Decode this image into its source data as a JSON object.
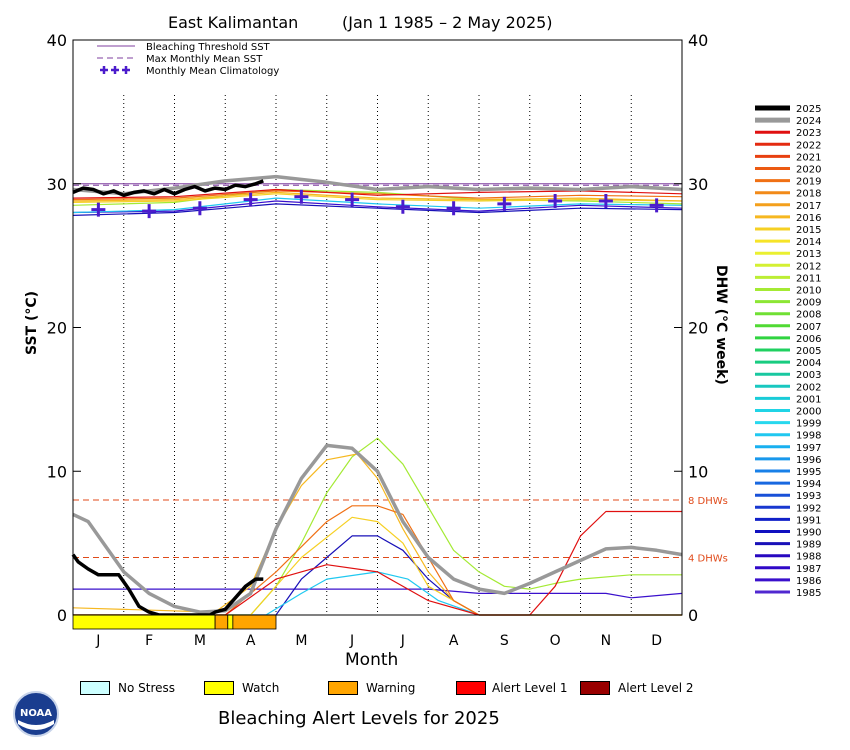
{
  "chart_data": {
    "type": "line",
    "title": "East Kalimantan",
    "subtitle": "(Jan 1 1985 – 2 May 2025)",
    "xlabel": "Month",
    "ylabel_left": "SST (°C)",
    "ylabel_right": "DHW (°C week)",
    "ylim": [
      0,
      40
    ],
    "yticks": [
      0,
      10,
      20,
      30,
      40
    ],
    "grid": "vertical dotted month lines",
    "months": [
      "J",
      "F",
      "M",
      "A",
      "M",
      "J",
      "J",
      "A",
      "S",
      "O",
      "N",
      "D"
    ],
    "bleaching_threshold_sst": 30.0,
    "max_monthly_mean_sst": 29.9,
    "dhw_reference_lines": [
      {
        "value": 8,
        "label": "8 DHWs"
      },
      {
        "value": 4,
        "label": "4 DHWs"
      }
    ],
    "legend_top": [
      {
        "label": "Bleaching Threshold SST",
        "style": "solid",
        "color": "#7f3f9f"
      },
      {
        "label": "Max Monthly Mean SST",
        "style": "dashed",
        "color": "#7f3f9f"
      },
      {
        "label": "Monthly Mean Climatology",
        "style": "plus",
        "color": "#4b1ccc"
      }
    ],
    "climatology": {
      "x": [
        0.5,
        1.5,
        2.5,
        3.5,
        4.5,
        5.5,
        6.5,
        7.5,
        8.5,
        9.5,
        10.5,
        11.5
      ],
      "y": [
        28.2,
        28.1,
        28.3,
        28.9,
        29.1,
        28.9,
        28.4,
        28.3,
        28.6,
        28.8,
        28.8,
        28.5
      ]
    },
    "years": [
      "2025",
      "2024",
      "2023",
      "2022",
      "2021",
      "2020",
      "2019",
      "2018",
      "2017",
      "2016",
      "2015",
      "2014",
      "2013",
      "2012",
      "2011",
      "2010",
      "2009",
      "2008",
      "2007",
      "2006",
      "2005",
      "2004",
      "2003",
      "2002",
      "2001",
      "2000",
      "1999",
      "1998",
      "1997",
      "1996",
      "1995",
      "1994",
      "1993",
      "1992",
      "1991",
      "1990",
      "1989",
      "1988",
      "1987",
      "1986",
      "1985"
    ],
    "year_colors": [
      "#000000",
      "#999999",
      "#e01010",
      "#e42a10",
      "#e84010",
      "#ec5a12",
      "#f07014",
      "#f28a18",
      "#f4a01c",
      "#f6b820",
      "#f6d024",
      "#f6e428",
      "#eaf030",
      "#d4f032",
      "#bcee34",
      "#a4ea34",
      "#8ce634",
      "#70e034",
      "#50da34",
      "#30d440",
      "#20d060",
      "#18cc80",
      "#18c8a0",
      "#18c8c0",
      "#18ccd8",
      "#20d4e6",
      "#28d8ee",
      "#20c8f0",
      "#18b0f0",
      "#1898ec",
      "#1880e8",
      "#1868e0",
      "#1850d8",
      "#1838d0",
      "#1020c8",
      "#1010c0",
      "#1810b8",
      "#2808c0",
      "#3008c8",
      "#3a10cc",
      "#5028d0"
    ],
    "series": [
      {
        "name": "2025",
        "color": "#000000",
        "sst": {
          "x": [
            0,
            0.2,
            0.4,
            0.6,
            0.8,
            1.0,
            1.2,
            1.4,
            1.6,
            1.8,
            2.0,
            2.2,
            2.4,
            2.6,
            2.8,
            3.0,
            3.2,
            3.4,
            3.6,
            3.75
          ],
          "y": [
            29.4,
            29.7,
            29.6,
            29.3,
            29.5,
            29.2,
            29.4,
            29.5,
            29.3,
            29.6,
            29.3,
            29.6,
            29.8,
            29.5,
            29.7,
            29.6,
            29.9,
            29.8,
            30.0,
            30.2
          ]
        },
        "dhw": {
          "x": [
            0,
            0.1,
            0.3,
            0.5,
            0.7,
            0.9,
            1.1,
            1.3,
            1.5,
            1.7,
            2.0,
            2.3,
            2.5,
            2.7,
            2.8,
            3.0,
            3.2,
            3.4,
            3.6,
            3.75
          ],
          "y": [
            4.2,
            3.7,
            3.2,
            2.8,
            2.8,
            2.8,
            1.8,
            0.6,
            0.2,
            0,
            0,
            0,
            0,
            0,
            0.2,
            0.4,
            1.2,
            2.0,
            2.5,
            2.5
          ]
        }
      },
      {
        "name": "2024",
        "color": "#999999",
        "sst": {
          "x": [
            0,
            1,
            2,
            3,
            4,
            5,
            6,
            7,
            8,
            9,
            10,
            11,
            12
          ],
          "y": [
            29.6,
            29.3,
            29.7,
            30.2,
            30.5,
            30.1,
            29.6,
            29.8,
            29.6,
            29.7,
            29.6,
            29.8,
            29.6
          ]
        },
        "dhw": {
          "x": [
            0,
            0.3,
            0.6,
            1.0,
            1.5,
            2.0,
            2.5,
            3.0,
            3.5,
            4.0,
            4.5,
            5.0,
            5.5,
            6.0,
            6.5,
            7.0,
            7.5,
            8.0,
            8.5,
            9.0,
            9.5,
            10.0,
            10.5,
            11.0,
            11.5,
            12.0
          ],
          "y": [
            7,
            6.5,
            5.0,
            3.0,
            1.5,
            0.6,
            0.2,
            0.3,
            1.5,
            6.0,
            9.5,
            11.8,
            11.6,
            10.0,
            6.5,
            4.0,
            2.5,
            1.8,
            1.5,
            2.2,
            3.0,
            3.8,
            4.6,
            4.7,
            4.5,
            4.2
          ]
        }
      },
      {
        "name": "2023",
        "color": "#e01010",
        "sst": {
          "x": [
            0,
            2,
            4,
            6,
            8,
            10,
            12
          ],
          "y": [
            29.0,
            29.1,
            29.6,
            29.2,
            29.4,
            29.5,
            29.3
          ]
        },
        "dhw": {
          "x": [
            0,
            3,
            4,
            5,
            6,
            7,
            8,
            9,
            9.5,
            10,
            10.5,
            11,
            12
          ],
          "y": [
            0,
            0,
            2.5,
            3.5,
            3.0,
            1.0,
            0,
            0,
            2.0,
            5.5,
            7.2,
            7.2,
            7.2
          ]
        }
      },
      {
        "name": "2019",
        "color": "#f07014",
        "sst": {
          "x": [
            0,
            2,
            4,
            6,
            8,
            10,
            12
          ],
          "y": [
            28.9,
            29.0,
            29.5,
            29.3,
            29.0,
            29.2,
            29.1
          ]
        },
        "dhw": {
          "x": [
            0,
            3,
            4,
            5,
            5.5,
            6.0,
            6.5,
            7.0,
            7.5,
            8,
            12
          ],
          "y": [
            0,
            0,
            3.0,
            6.5,
            7.6,
            7.6,
            7.0,
            4.0,
            1.0,
            0,
            0
          ]
        }
      },
      {
        "name": "2016",
        "color": "#f6b820",
        "sst": {
          "x": [
            0,
            2,
            4,
            6,
            8,
            10,
            12
          ],
          "y": [
            28.8,
            28.9,
            29.4,
            29.0,
            28.9,
            29.0,
            28.8
          ]
        },
        "dhw": {
          "x": [
            0,
            2.8,
            3.5,
            4.0,
            4.5,
            5.0,
            5.6,
            6.0,
            6.5,
            7.0,
            7.5,
            8,
            12
          ],
          "y": [
            0.5,
            0.2,
            2.0,
            6.0,
            9.0,
            10.8,
            11.2,
            9.5,
            6.0,
            3.0,
            1.0,
            0,
            0
          ]
        }
      },
      {
        "name": "2015",
        "color": "#f6d024",
        "sst": {
          "x": [
            0,
            2,
            4,
            6,
            8,
            10,
            12
          ],
          "y": [
            28.7,
            28.8,
            29.3,
            28.9,
            28.8,
            28.9,
            28.8
          ]
        },
        "dhw": {
          "x": [
            0,
            3.5,
            4.5,
            5.5,
            6.0,
            6.5,
            7.0,
            8,
            12
          ],
          "y": [
            0,
            0,
            4.0,
            6.8,
            6.5,
            5.0,
            2.0,
            0,
            0
          ]
        }
      },
      {
        "name": "2010",
        "color": "#a4ea34",
        "sst": {
          "x": [
            0,
            2,
            4,
            6,
            8,
            10,
            12
          ],
          "y": [
            28.5,
            28.7,
            29.6,
            29.4,
            28.9,
            28.8,
            28.6
          ]
        },
        "dhw": {
          "x": [
            0,
            3.5,
            4.0,
            4.5,
            5.0,
            5.5,
            6.0,
            6.5,
            7.0,
            7.5,
            8.0,
            8.5,
            9.0,
            9.5,
            10,
            11,
            12
          ],
          "y": [
            0,
            0,
            2.0,
            5.0,
            8.5,
            11.0,
            12.3,
            10.5,
            7.5,
            4.5,
            3.0,
            2.0,
            1.8,
            2.2,
            2.5,
            2.8,
            2.8
          ]
        }
      },
      {
        "name": "1998",
        "color": "#20c8f0",
        "sst": {
          "x": [
            0,
            2,
            4,
            6,
            8,
            10,
            12
          ],
          "y": [
            28.0,
            28.2,
            29.0,
            28.6,
            28.3,
            28.6,
            28.5
          ]
        },
        "dhw": {
          "x": [
            0,
            3.8,
            4.5,
            5.0,
            6.0,
            6.6,
            7.2,
            8,
            12
          ],
          "y": [
            0,
            0,
            1.5,
            2.5,
            3.0,
            2.5,
            1.0,
            0,
            0
          ]
        }
      },
      {
        "name": "1988",
        "color": "#1810b8",
        "sst": {
          "x": [
            0,
            2,
            4,
            6,
            8,
            10,
            12
          ],
          "y": [
            27.8,
            28.0,
            28.6,
            28.3,
            28.0,
            28.3,
            28.2
          ]
        },
        "dhw": {
          "x": [
            0,
            4.0,
            4.5,
            5.0,
            5.5,
            6.0,
            6.5,
            7.0,
            7.5,
            8,
            12
          ],
          "y": [
            0,
            0,
            2.5,
            4.0,
            5.5,
            5.5,
            4.5,
            2.5,
            1.0,
            0,
            0
          ]
        }
      },
      {
        "name": "1986",
        "color": "#3a10cc",
        "sst": {
          "x": [
            0,
            2,
            4,
            6,
            8,
            10,
            12
          ],
          "y": [
            28.0,
            28.1,
            28.8,
            28.4,
            28.1,
            28.5,
            28.3
          ]
        },
        "dhw": {
          "x": [
            0,
            2.0,
            3.0,
            4.0,
            5.0,
            6.0,
            7.0,
            8.0,
            10.5,
            11,
            12
          ],
          "y": [
            1.8,
            1.8,
            1.8,
            1.8,
            1.8,
            1.8,
            1.8,
            1.5,
            1.5,
            1.2,
            1.5
          ]
        }
      }
    ],
    "alert_levels_2025": [
      {
        "start": 0,
        "end": 2.8,
        "level": "Watch",
        "color": "#ffff00"
      },
      {
        "start": 2.8,
        "end": 3.05,
        "level": "Warning",
        "color": "#ffa500"
      },
      {
        "start": 3.05,
        "end": 3.15,
        "level": "Watch",
        "color": "#ffff00"
      },
      {
        "start": 3.15,
        "end": 4.0,
        "level": "Warning",
        "color": "#ffa500"
      }
    ]
  },
  "alert_legend": [
    {
      "label": "No Stress",
      "color": "#ccffff"
    },
    {
      "label": "Watch",
      "color": "#ffff00"
    },
    {
      "label": "Warning",
      "color": "#ffa500"
    },
    {
      "label": "Alert Level 1",
      "color": "#ff0000"
    },
    {
      "label": "Alert Level 2",
      "color": "#990000"
    }
  ],
  "alert_title": "Bleaching Alert Levels for 2025",
  "logo_text": "NOAA"
}
